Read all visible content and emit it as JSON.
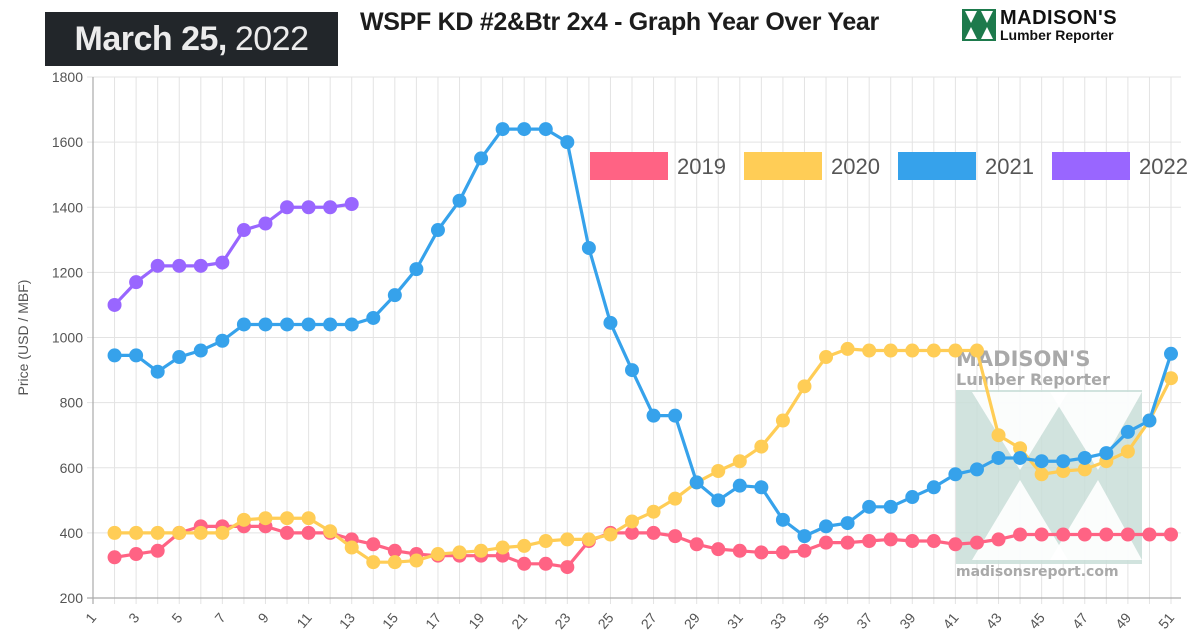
{
  "header": {
    "date_bold": "March 25,",
    "date_year": "2022",
    "title": "WSPF KD #2&Btr 2x4 - Graph Year Over Year",
    "logo_line1": "MADISON'S",
    "logo_line2": "Lumber Reporter"
  },
  "watermark": {
    "line1": "MADISON'S",
    "line2": "Lumber Reporter",
    "url": "madisonsreport.com"
  },
  "chart_data": {
    "type": "line",
    "title": "WSPF KD #2&Btr 2x4 - Graph Year Over Year",
    "xlabel": "",
    "ylabel": "Price (USD / MBF)",
    "ylim": [
      200,
      1800
    ],
    "yticks": [
      200,
      400,
      600,
      800,
      1000,
      1200,
      1400,
      1600,
      1800
    ],
    "xlim": [
      1,
      51
    ],
    "xticks": [
      1,
      3,
      5,
      7,
      9,
      11,
      13,
      15,
      17,
      19,
      21,
      23,
      25,
      27,
      29,
      31,
      33,
      35,
      37,
      39,
      41,
      43,
      45,
      47,
      49,
      51
    ],
    "grid": true,
    "legend_position": "top-right",
    "series": [
      {
        "name": "2019",
        "color": "#ff6384",
        "start_week": 2,
        "values": [
          325,
          335,
          345,
          400,
          420,
          420,
          420,
          420,
          400,
          400,
          400,
          380,
          365,
          345,
          335,
          330,
          330,
          330,
          330,
          305,
          305,
          295,
          375,
          400,
          400,
          400,
          390,
          365,
          350,
          345,
          340,
          340,
          345,
          370,
          370,
          375,
          380,
          375,
          375,
          365,
          370,
          380,
          395,
          395,
          395,
          395,
          395,
          395,
          395,
          395
        ]
      },
      {
        "name": "2020",
        "color": "#ffcd56",
        "start_week": 2,
        "values": [
          400,
          400,
          400,
          400,
          400,
          400,
          440,
          445,
          445,
          445,
          405,
          355,
          310,
          310,
          315,
          335,
          340,
          345,
          355,
          360,
          375,
          380,
          380,
          395,
          435,
          465,
          505,
          555,
          590,
          620,
          665,
          745,
          850,
          940,
          965,
          960,
          960,
          960,
          960,
          960,
          960,
          700,
          660,
          580,
          590,
          595,
          620,
          650,
          745,
          875
        ]
      },
      {
        "name": "2021",
        "color": "#36a2eb",
        "start_week": 2,
        "values": [
          945,
          945,
          895,
          940,
          960,
          990,
          1040,
          1040,
          1040,
          1040,
          1040,
          1040,
          1060,
          1130,
          1210,
          1330,
          1420,
          1550,
          1640,
          1640,
          1640,
          1600,
          1275,
          1045,
          900,
          760,
          760,
          555,
          500,
          545,
          540,
          440,
          390,
          420,
          430,
          480,
          480,
          510,
          540,
          580,
          595,
          630,
          630,
          620,
          620,
          630,
          645,
          710,
          745,
          950
        ]
      },
      {
        "name": "2022",
        "color": "#9966ff",
        "start_week": 2,
        "values": [
          1100,
          1170,
          1220,
          1220,
          1220,
          1230,
          1330,
          1350,
          1400,
          1400,
          1400,
          1410
        ]
      }
    ]
  }
}
